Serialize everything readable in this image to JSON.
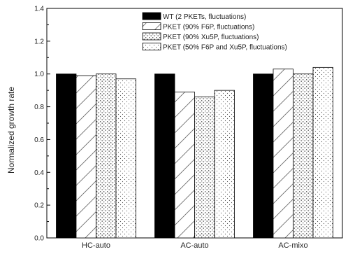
{
  "chart_data": {
    "type": "bar",
    "title": "",
    "xlabel": "",
    "ylabel": "Normalized growth rate",
    "ylim": [
      0,
      1.4
    ],
    "yticks": [
      "0.0",
      "0.2",
      "0.4",
      "0.6",
      "0.8",
      "1.0",
      "1.2",
      "1.4"
    ],
    "grid": false,
    "legend_position": "top-right",
    "categories": [
      "HC-auto",
      "AC-auto",
      "AC-mixo"
    ],
    "series": [
      {
        "name": "WT (2 PKETs, fluctuations)",
        "values": [
          1.0,
          1.0,
          1.0
        ],
        "pattern": "solid",
        "color": "#000000"
      },
      {
        "name": "PKET (90% F6P, fluctuations)",
        "values": [
          0.99,
          0.89,
          1.03
        ],
        "pattern": "diagonal",
        "color": "#000000"
      },
      {
        "name": "PKET (90% Xu5P, fluctuations)",
        "values": [
          1.0,
          0.86,
          1.0
        ],
        "pattern": "grid",
        "color": "#000000"
      },
      {
        "name": "PKET (50% F6P and Xu5P, fluctuations)",
        "values": [
          0.97,
          0.9,
          1.04
        ],
        "pattern": "dots",
        "color": "#000000"
      }
    ]
  }
}
